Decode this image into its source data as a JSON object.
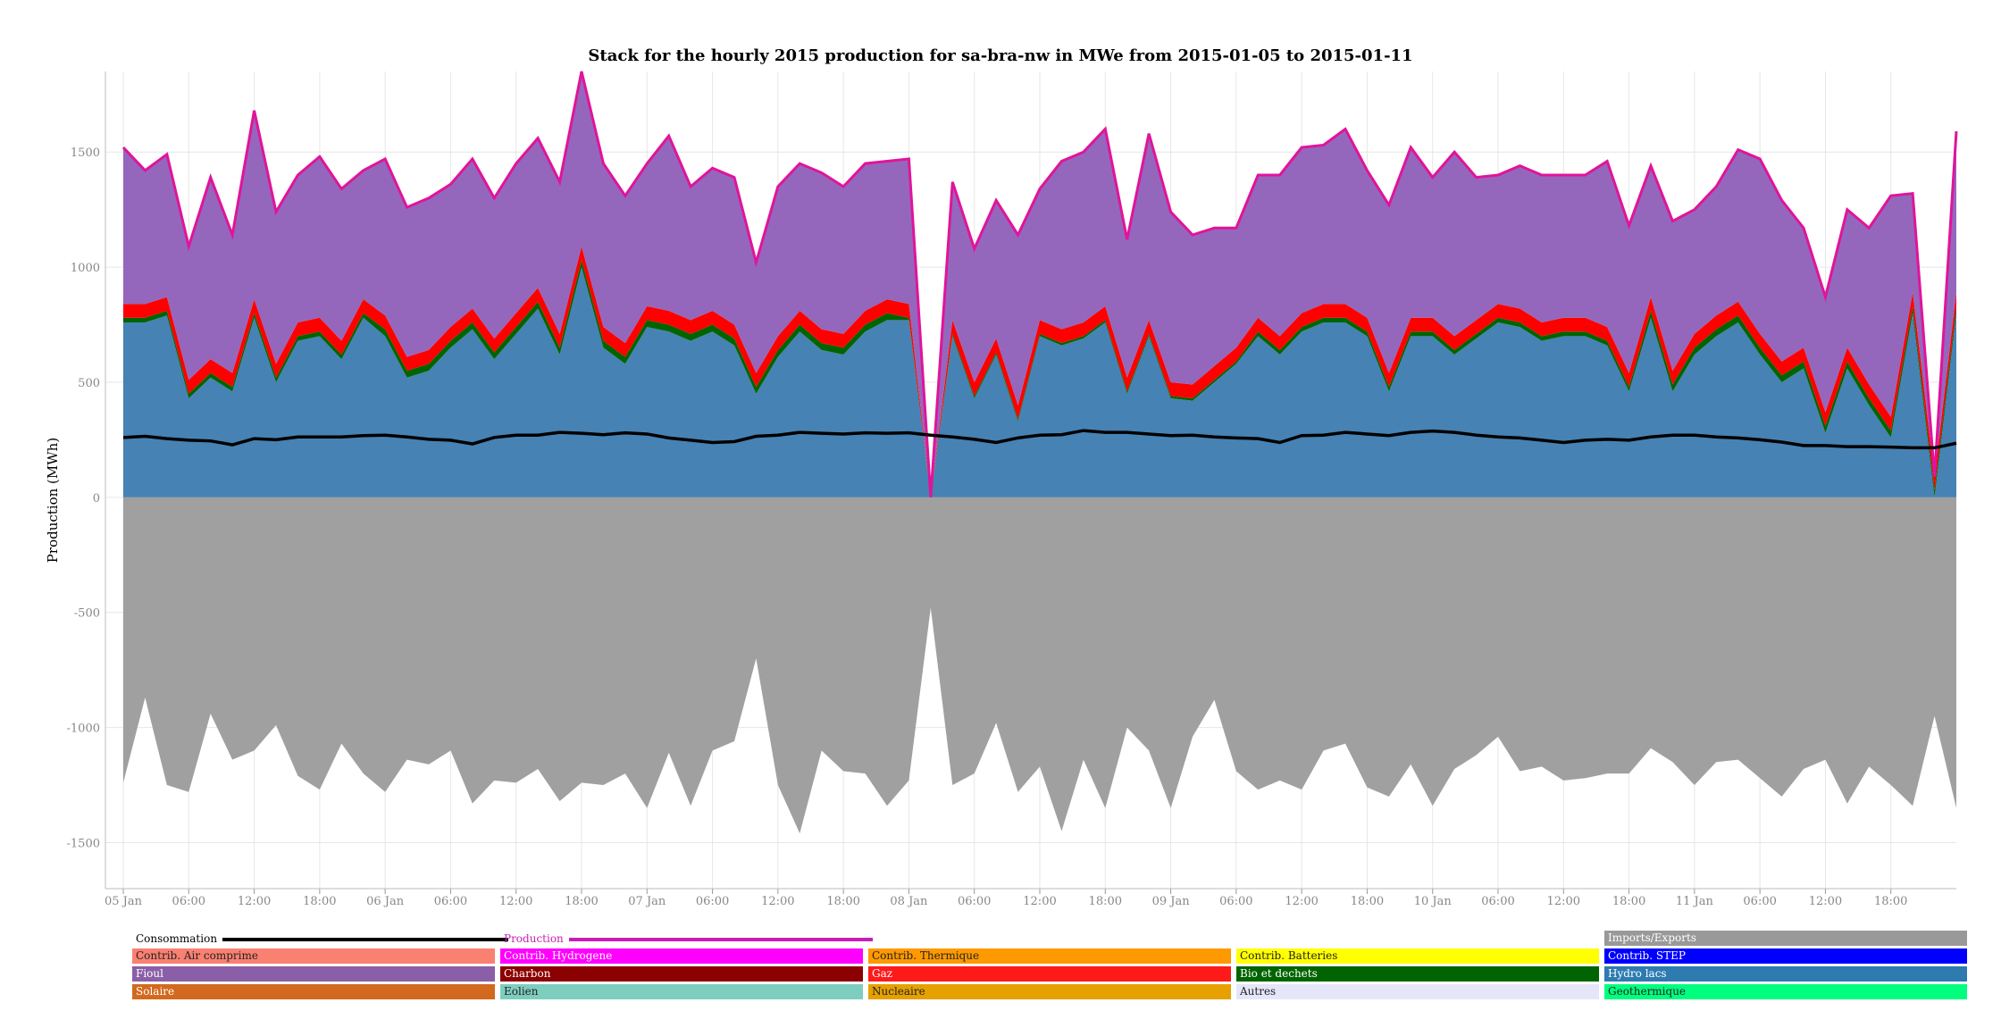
{
  "chart_data": {
    "type": "area",
    "title": "Stack for the hourly 2015 production for sa-bra-nw in MWe from 2015-01-05 to 2015-01-11",
    "ylabel": "Production (MWh)",
    "xlabel": "",
    "ylim": [
      -1700,
      1850
    ],
    "yticks": [
      -1500,
      -1000,
      -500,
      0,
      500,
      1000,
      1500
    ],
    "xticks": [
      {
        "x": 0,
        "label": "05 Jan"
      },
      {
        "x": 6,
        "label": "06:00"
      },
      {
        "x": 12,
        "label": "12:00"
      },
      {
        "x": 18,
        "label": "18:00"
      },
      {
        "x": 24,
        "label": "06 Jan"
      },
      {
        "x": 30,
        "label": "06:00"
      },
      {
        "x": 36,
        "label": "12:00"
      },
      {
        "x": 42,
        "label": "18:00"
      },
      {
        "x": 48,
        "label": "07 Jan"
      },
      {
        "x": 54,
        "label": "06:00"
      },
      {
        "x": 60,
        "label": "12:00"
      },
      {
        "x": 66,
        "label": "18:00"
      },
      {
        "x": 72,
        "label": "08 Jan"
      },
      {
        "x": 78,
        "label": "06:00"
      },
      {
        "x": 84,
        "label": "12:00"
      },
      {
        "x": 90,
        "label": "18:00"
      },
      {
        "x": 96,
        "label": "09 Jan"
      },
      {
        "x": 102,
        "label": "06:00"
      },
      {
        "x": 108,
        "label": "12:00"
      },
      {
        "x": 114,
        "label": "18:00"
      },
      {
        "x": 120,
        "label": "10 Jan"
      },
      {
        "x": 126,
        "label": "06:00"
      },
      {
        "x": 132,
        "label": "12:00"
      },
      {
        "x": 138,
        "label": "18:00"
      },
      {
        "x": 144,
        "label": "11 Jan"
      },
      {
        "x": 150,
        "label": "06:00"
      },
      {
        "x": 156,
        "label": "12:00"
      },
      {
        "x": 162,
        "label": "18:00"
      }
    ],
    "x_unit": "hours since 2015-01-05 00:00",
    "x": [
      0,
      2,
      4,
      6,
      8,
      10,
      12,
      14,
      16,
      18,
      20,
      22,
      24,
      26,
      28,
      30,
      32,
      34,
      36,
      38,
      40,
      42,
      44,
      46,
      48,
      50,
      52,
      54,
      56,
      58,
      60,
      62,
      64,
      66,
      68,
      70,
      72,
      74,
      76,
      78,
      80,
      82,
      84,
      86,
      88,
      90,
      92,
      94,
      96,
      98,
      100,
      102,
      104,
      106,
      108,
      110,
      112,
      114,
      116,
      118,
      120,
      122,
      124,
      126,
      128,
      130,
      132,
      134,
      136,
      138,
      140,
      142,
      144,
      146,
      148,
      150,
      152,
      154,
      156,
      158,
      160,
      162,
      164,
      166,
      168
    ],
    "series": [
      {
        "name": "Hydro lacs",
        "color": "#4682b4",
        "values": [
          760,
          760,
          790,
          430,
          520,
          460,
          780,
          500,
          680,
          700,
          600,
          780,
          700,
          520,
          550,
          650,
          730,
          600,
          710,
          820,
          620,
          1000,
          650,
          580,
          740,
          720,
          680,
          720,
          660,
          450,
          610,
          720,
          640,
          620,
          720,
          770,
          770,
          0,
          700,
          430,
          620,
          330,
          700,
          660,
          690,
          760,
          450,
          700,
          430,
          420,
          500,
          580,
          700,
          620,
          720,
          760,
          760,
          700,
          460,
          700,
          700,
          620,
          690,
          760,
          740,
          680,
          700,
          700,
          660,
          460,
          780,
          460,
          620,
          700,
          760,
          620,
          500,
          560,
          280,
          560,
          400,
          260,
          800,
          0,
          800
        ],
        "lines_to_draw": true
      },
      {
        "name": "Bio et dechets",
        "color": "#006400",
        "values": [
          20,
          20,
          20,
          20,
          20,
          20,
          20,
          20,
          20,
          20,
          20,
          20,
          30,
          30,
          30,
          30,
          30,
          30,
          30,
          30,
          30,
          30,
          30,
          30,
          30,
          30,
          30,
          30,
          30,
          30,
          30,
          30,
          30,
          30,
          30,
          30,
          10,
          0,
          10,
          10,
          10,
          10,
          10,
          10,
          10,
          10,
          10,
          10,
          10,
          10,
          10,
          10,
          20,
          20,
          20,
          20,
          20,
          20,
          20,
          20,
          20,
          20,
          20,
          20,
          20,
          20,
          20,
          20,
          20,
          20,
          30,
          30,
          30,
          30,
          30,
          30,
          30,
          30,
          30,
          30,
          30,
          30,
          30,
          30,
          30
        ]
      },
      {
        "name": "Gaz",
        "color": "#ff0000",
        "values": [
          60,
          60,
          60,
          60,
          60,
          60,
          60,
          60,
          60,
          60,
          60,
          60,
          60,
          60,
          60,
          60,
          60,
          60,
          60,
          60,
          60,
          60,
          60,
          60,
          60,
          60,
          60,
          60,
          60,
          60,
          60,
          60,
          60,
          60,
          60,
          60,
          60,
          0,
          60,
          60,
          60,
          60,
          60,
          60,
          60,
          60,
          60,
          60,
          60,
          60,
          60,
          60,
          60,
          60,
          60,
          60,
          60,
          60,
          60,
          60,
          60,
          60,
          60,
          60,
          60,
          60,
          60,
          60,
          60,
          60,
          60,
          60,
          60,
          60,
          60,
          60,
          60,
          60,
          60,
          60,
          60,
          60,
          60,
          60,
          60
        ]
      },
      {
        "name": "Fioul",
        "color": "#9467bd",
        "values": [
          680,
          580,
          620,
          580,
          790,
          600,
          820,
          660,
          640,
          700,
          660,
          560,
          680,
          650,
          660,
          620,
          650,
          610,
          650,
          650,
          660,
          760,
          710,
          640,
          620,
          760,
          580,
          620,
          640,
          480,
          650,
          640,
          680,
          640,
          640,
          600,
          630,
          0,
          600,
          580,
          600,
          740,
          570,
          730,
          740,
          770,
          600,
          810,
          740,
          650,
          600,
          520,
          620,
          700,
          720,
          690,
          760,
          640,
          730,
          740,
          610,
          800,
          620,
          560,
          620,
          640,
          620,
          620,
          720,
          640,
          570,
          650,
          540,
          560,
          660,
          760,
          700,
          520,
          500,
          600,
          680,
          960,
          430,
          0,
          700
        ]
      },
      {
        "name": "Imports/Exports",
        "color": "#a0a0a0",
        "values": [
          -1240,
          -870,
          -1250,
          -1280,
          -940,
          -1140,
          -1100,
          -990,
          -1210,
          -1270,
          -1070,
          -1200,
          -1280,
          -1140,
          -1160,
          -1100,
          -1330,
          -1230,
          -1240,
          -1180,
          -1320,
          -1240,
          -1250,
          -1200,
          -1350,
          -1110,
          -1340,
          -1100,
          -1060,
          -700,
          -1250,
          -1460,
          -1100,
          -1190,
          -1200,
          -1340,
          -1230,
          -480,
          -1250,
          -1200,
          -980,
          -1280,
          -1170,
          -1450,
          -1140,
          -1350,
          -1000,
          -1100,
          -1350,
          -1040,
          -880,
          -1190,
          -1270,
          -1230,
          -1270,
          -1100,
          -1070,
          -1260,
          -1300,
          -1160,
          -1340,
          -1180,
          -1120,
          -1040,
          -1190,
          -1170,
          -1230,
          -1220,
          -1200,
          -1200,
          -1090,
          -1150,
          -1250,
          -1150,
          -1140,
          -1220,
          -1300,
          -1180,
          -1140,
          -1330,
          -1170,
          -1250,
          -1340,
          -950,
          -1350
        ]
      }
    ],
    "lines": [
      {
        "name": "Consommation",
        "color": "#000000",
        "values": [
          260,
          265,
          255,
          248,
          245,
          228,
          255,
          250,
          262,
          262,
          262,
          268,
          270,
          262,
          252,
          248,
          232,
          260,
          270,
          270,
          282,
          278,
          272,
          280,
          275,
          258,
          248,
          238,
          242,
          265,
          270,
          282,
          278,
          275,
          280,
          278,
          280,
          270,
          262,
          252,
          238,
          258,
          270,
          272,
          290,
          282,
          282,
          275,
          268,
          270,
          262,
          258,
          255,
          238,
          268,
          270,
          282,
          275,
          268,
          282,
          288,
          282,
          270,
          262,
          258,
          248,
          238,
          248,
          252,
          248,
          262,
          270,
          270,
          262,
          258,
          250,
          240,
          225,
          225,
          220,
          220,
          218,
          215,
          215,
          235
        ]
      },
      {
        "name": "Production",
        "color": "#e0149a"
      }
    ],
    "legend": {
      "placement": "bottom",
      "lines": [
        {
          "name": "Consommation",
          "color": "#000000"
        },
        {
          "name": "Production",
          "color": "#c81fb3"
        }
      ],
      "rows": [
        [
          null,
          null,
          null,
          null,
          {
            "name": "Imports/Exports",
            "color": "#999999"
          }
        ],
        [
          {
            "name": "Contrib. Air comprime",
            "color": "#fa8072"
          },
          {
            "name": "Contrib. Hydrogene",
            "color": "#ff00ff"
          },
          {
            "name": "Contrib. Thermique",
            "color": "#ff9900"
          },
          {
            "name": "Contrib. Batteries",
            "color": "#ffff00"
          },
          {
            "name": "Contrib. STEP",
            "color": "#0000ff"
          }
        ],
        [
          {
            "name": "Fioul",
            "color": "#8b5fa8"
          },
          {
            "name": "Charbon",
            "color": "#8b0000"
          },
          {
            "name": "Gaz",
            "color": "#ff1a1a"
          },
          {
            "name": "Bio et dechets",
            "color": "#006400"
          },
          {
            "name": "Hydro lacs",
            "color": "#2e7bb0"
          }
        ],
        [
          {
            "name": "Solaire",
            "color": "#d2691e"
          },
          {
            "name": "Eolien",
            "color": "#7ecec0"
          },
          {
            "name": "Nucleaire",
            "color": "#e6a100"
          },
          {
            "name": "Autres",
            "color": "#e6e6fa"
          },
          {
            "name": "Geothermique",
            "color": "#00ff7f"
          }
        ]
      ]
    },
    "grid": true
  }
}
